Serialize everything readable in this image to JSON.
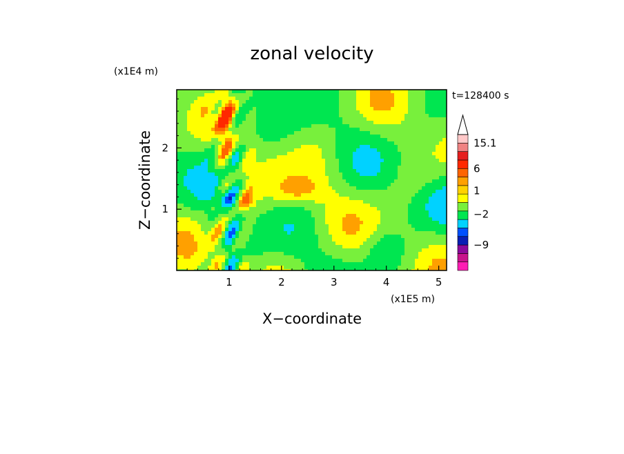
{
  "chart_data": {
    "type": "heatmap",
    "title": "zonal velocity",
    "xlabel": "X−coordinate",
    "ylabel": "Z−coordinate",
    "x_scale_label": "(x1E5 m)",
    "y_scale_label": "(x1E4 m)",
    "time_label": "t=128400 s",
    "xlim": [
      0,
      5.15
    ],
    "ylim": [
      0,
      2.95
    ],
    "x_ticks": [
      {
        "value": 1,
        "label": "1"
      },
      {
        "value": 2,
        "label": "2"
      },
      {
        "value": 3,
        "label": "3"
      },
      {
        "value": 4,
        "label": "4"
      },
      {
        "value": 5,
        "label": "5"
      }
    ],
    "y_ticks": [
      {
        "value": 1,
        "label": "1"
      },
      {
        "value": 2,
        "label": "2"
      }
    ],
    "colorbar": {
      "colors": [
        "#ff1eb4",
        "#c8148c",
        "#8c0a9b",
        "#0a1eb4",
        "#0050ff",
        "#00d2ff",
        "#00e650",
        "#78f03c",
        "#ffff00",
        "#ffd200",
        "#ffa000",
        "#ff6400",
        "#ff2800",
        "#e61e1e",
        "#f08282",
        "#ffc8c8"
      ],
      "extend_top_color": "#ffffff",
      "labels": [
        {
          "text": "15.1",
          "level": 15.1
        },
        {
          "text": "6",
          "level": 6
        },
        {
          "text": "1",
          "level": 1
        },
        {
          "text": "−2",
          "level": -2
        },
        {
          "text": "−9",
          "level": -9
        }
      ]
    }
  }
}
